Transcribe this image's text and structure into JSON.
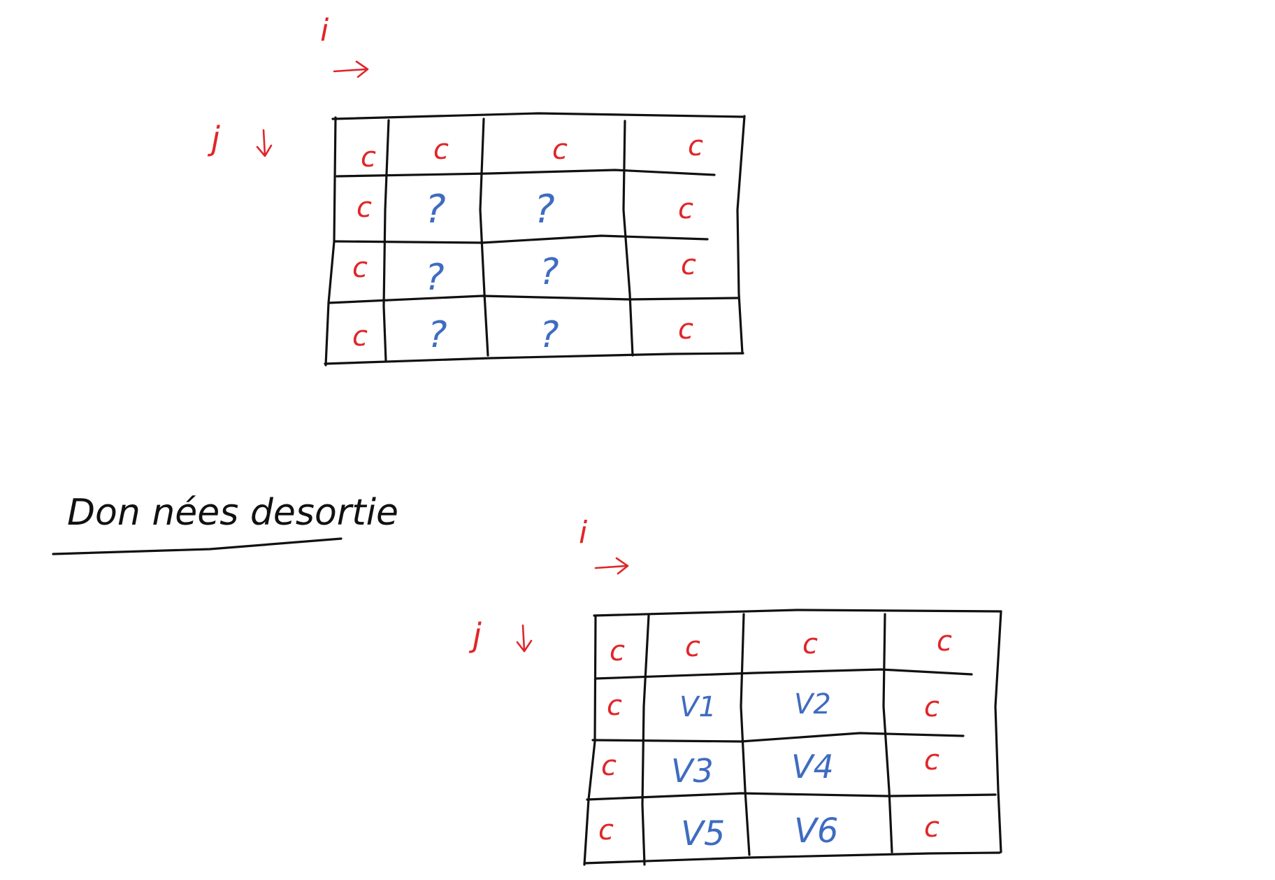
{
  "colors": {
    "ink": "#111111",
    "red": "#e0262a",
    "blue": "#3f6cc0"
  },
  "section_title": "Don nées desortie",
  "input_grid": {
    "i_label": "i",
    "j_label": "j",
    "cells": [
      [
        "c",
        "c",
        "c",
        "c"
      ],
      [
        "c",
        "?",
        "?",
        "c"
      ],
      [
        "c",
        "?",
        "?",
        "c"
      ],
      [
        "c",
        "?",
        "?",
        "c"
      ]
    ]
  },
  "output_grid": {
    "i_label": "i",
    "j_label": "j",
    "cells": [
      [
        "c",
        "c",
        "c",
        "c"
      ],
      [
        "c",
        "V1",
        "V2",
        "c"
      ],
      [
        "c",
        "V3",
        "V4",
        "c"
      ],
      [
        "c",
        "V5",
        "V6",
        "c"
      ]
    ]
  }
}
